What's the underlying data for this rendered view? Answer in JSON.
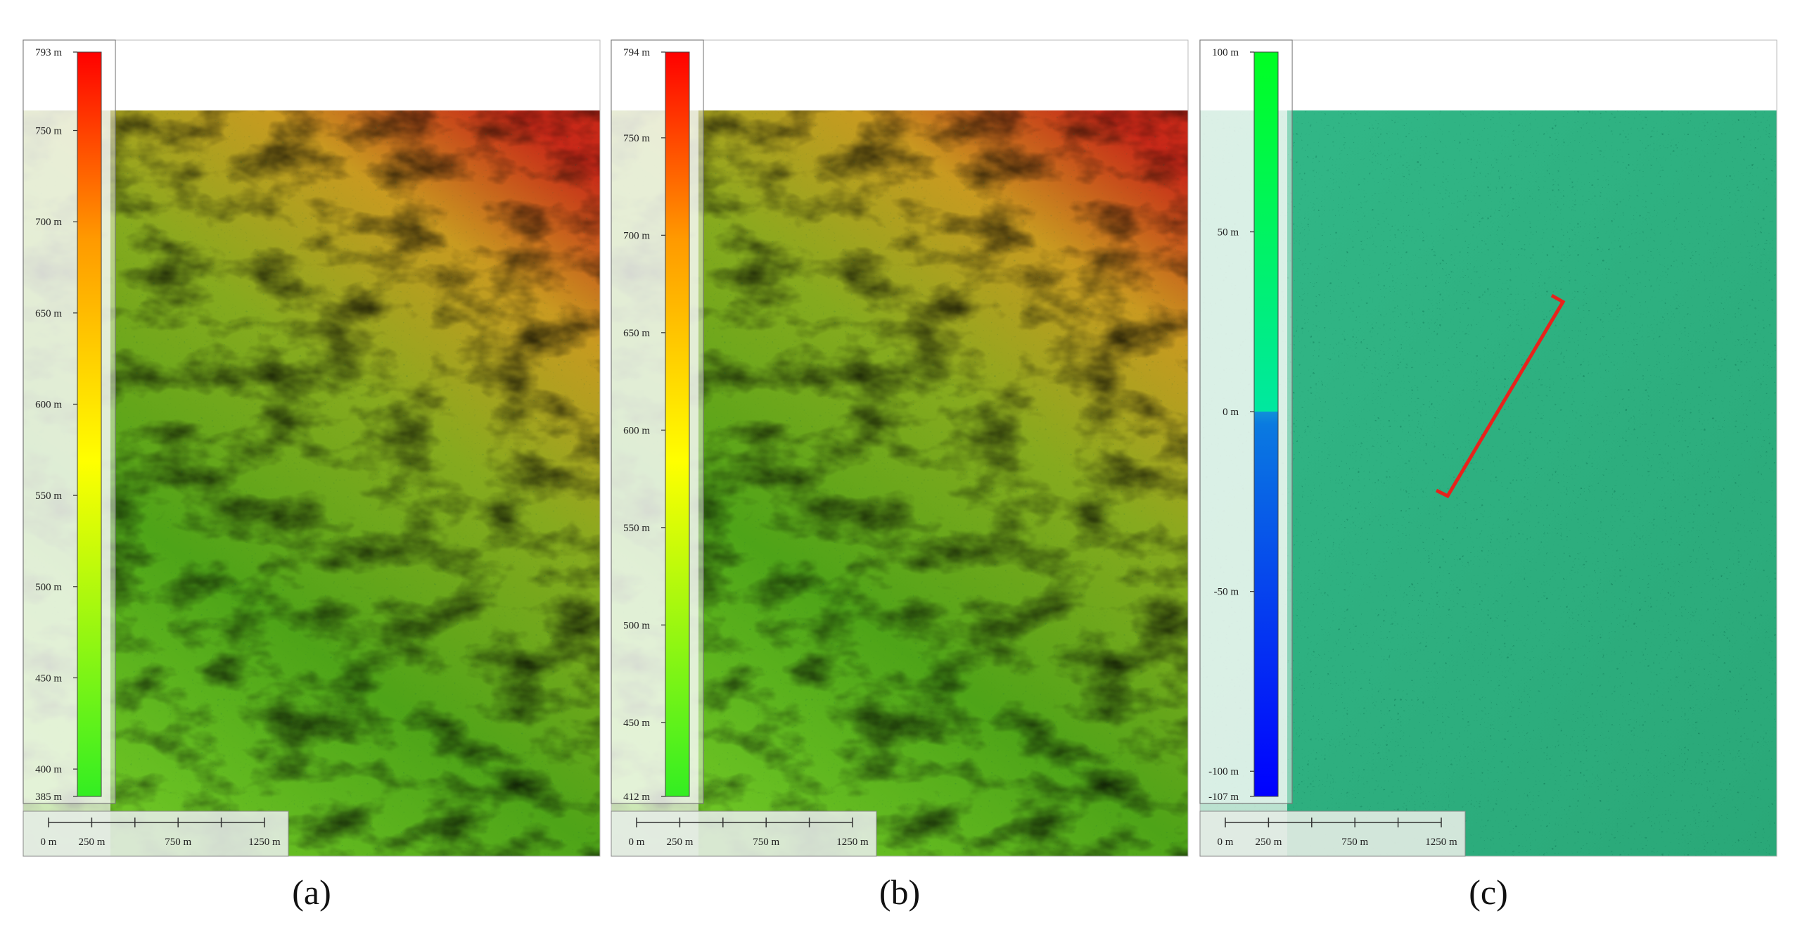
{
  "panels": [
    {
      "label": "(a)",
      "colorbar": {
        "ticks": [
          {
            "value": 793,
            "label": "793 m"
          },
          {
            "value": 750,
            "label": "750 m"
          },
          {
            "value": 700,
            "label": "700 m"
          },
          {
            "value": 650,
            "label": "650 m"
          },
          {
            "value": 600,
            "label": "600 m"
          },
          {
            "value": 550,
            "label": "550 m"
          },
          {
            "value": 500,
            "label": "500 m"
          },
          {
            "value": 450,
            "label": "450 m"
          },
          {
            "value": 400,
            "label": "400 m"
          },
          {
            "value": 385,
            "label": "385 m"
          }
        ]
      },
      "scale_bar": [
        {
          "value": 0,
          "label": "0 m"
        },
        {
          "value": 250,
          "label": "250 m"
        },
        {
          "value": 750,
          "label": "750 m"
        },
        {
          "value": 1250,
          "label": "1250 m"
        }
      ]
    },
    {
      "label": "(b)",
      "colorbar": {
        "ticks": [
          {
            "value": 794,
            "label": "794 m"
          },
          {
            "value": 750,
            "label": "750 m"
          },
          {
            "value": 700,
            "label": "700 m"
          },
          {
            "value": 650,
            "label": "650 m"
          },
          {
            "value": 600,
            "label": "600 m"
          },
          {
            "value": 550,
            "label": "550 m"
          },
          {
            "value": 500,
            "label": "500 m"
          },
          {
            "value": 450,
            "label": "450 m"
          },
          {
            "value": 412,
            "label": "412 m"
          }
        ]
      },
      "scale_bar": [
        {
          "value": 0,
          "label": "0 m"
        },
        {
          "value": 250,
          "label": "250 m"
        },
        {
          "value": 750,
          "label": "750 m"
        },
        {
          "value": 1250,
          "label": "1250 m"
        }
      ]
    },
    {
      "label": "(c)",
      "colorbar": {
        "ticks": [
          {
            "value": 100,
            "label": "100 m"
          },
          {
            "value": 50,
            "label": "50 m"
          },
          {
            "value": 0,
            "label": "0 m"
          },
          {
            "value": -50,
            "label": "-50 m"
          },
          {
            "value": -100,
            "label": "-100 m"
          },
          {
            "value": -107,
            "label": "-107 m"
          }
        ]
      },
      "scale_bar": [
        {
          "value": 0,
          "label": "0 m"
        },
        {
          "value": 250,
          "label": "250 m"
        },
        {
          "value": 750,
          "label": "750 m"
        },
        {
          "value": 1250,
          "label": "1250 m"
        }
      ]
    }
  ]
}
